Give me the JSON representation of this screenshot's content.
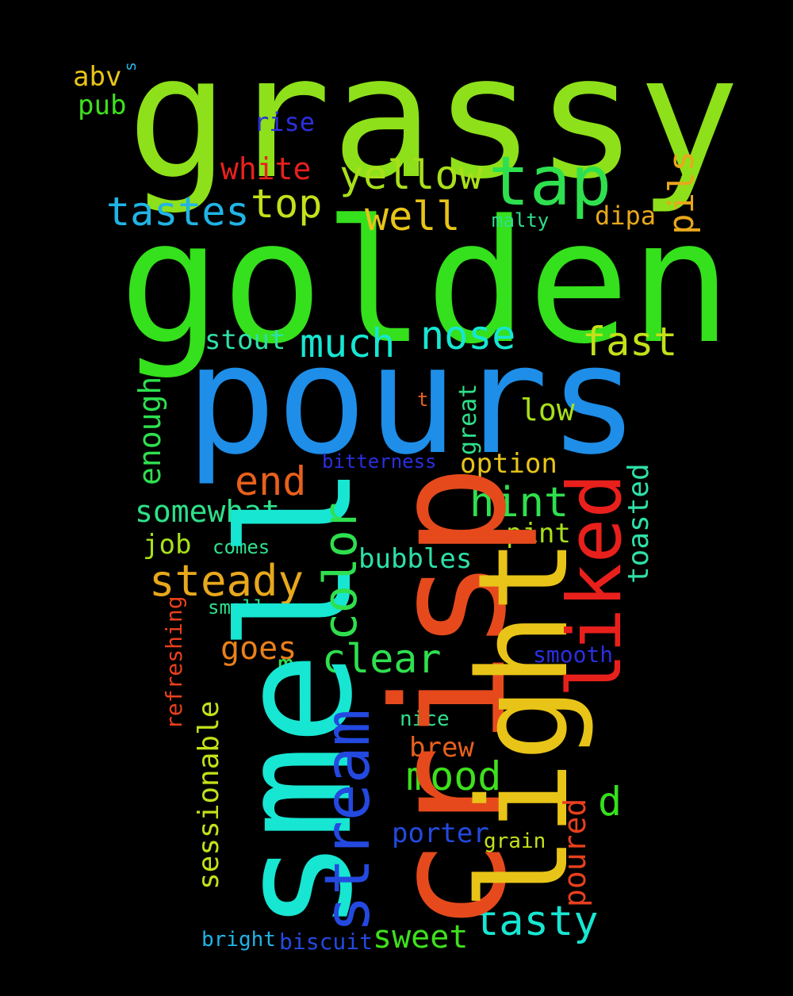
{
  "words": [
    {
      "text": "grassy",
      "color": "#8ee01a"
    },
    {
      "text": "golden",
      "color": "#35e01c"
    },
    {
      "text": "pours",
      "color": "#1e8ee8"
    },
    {
      "text": "smell",
      "color": "#17e6d2"
    },
    {
      "text": "crisp",
      "color": "#e64a1c"
    },
    {
      "text": "light",
      "color": "#e8c418"
    },
    {
      "text": "liked",
      "color": "#e8201c"
    },
    {
      "text": "stream",
      "color": "#2449e0"
    },
    {
      "text": "color",
      "color": "#2ee04e"
    },
    {
      "text": "tap",
      "color": "#2ee04e"
    },
    {
      "text": "yellow",
      "color": "#a8e01a"
    },
    {
      "text": "tastes",
      "color": "#20b4e6"
    },
    {
      "text": "top",
      "color": "#c4e01a"
    },
    {
      "text": "well",
      "color": "#e8c418"
    },
    {
      "text": "white",
      "color": "#e8201c"
    },
    {
      "text": "rise",
      "color": "#2b2fe0"
    },
    {
      "text": "pils",
      "color": "#e8a81c"
    },
    {
      "text": "dipa",
      "color": "#e8a81c"
    },
    {
      "text": "malty",
      "color": "#2ee08a"
    },
    {
      "text": "abv",
      "color": "#e8c418"
    },
    {
      "text": "s",
      "color": "#20b4e6"
    },
    {
      "text": "pub",
      "color": "#3ee01c"
    },
    {
      "text": "much",
      "color": "#17e6d2"
    },
    {
      "text": "nose",
      "color": "#17e6d2"
    },
    {
      "text": "fast",
      "color": "#c4e01a"
    },
    {
      "text": "stout",
      "color": "#2ee0a8"
    },
    {
      "text": "enough",
      "color": "#2ee04e"
    },
    {
      "text": "end",
      "color": "#e8601c"
    },
    {
      "text": "t",
      "color": "#e8601c"
    },
    {
      "text": "great",
      "color": "#2ee08a"
    },
    {
      "text": "low",
      "color": "#a8e01a"
    },
    {
      "text": "bitterness",
      "color": "#2b2fe0"
    },
    {
      "text": "option",
      "color": "#e8c418"
    },
    {
      "text": "hint",
      "color": "#2ee04e"
    },
    {
      "text": "somewhat",
      "color": "#2ee08a"
    },
    {
      "text": "pint",
      "color": "#a8e01a"
    },
    {
      "text": "job",
      "color": "#a8e01a"
    },
    {
      "text": "comes",
      "color": "#2ee08a"
    },
    {
      "text": "bubbles",
      "color": "#2ee0a8"
    },
    {
      "text": "steady",
      "color": "#e8a81c"
    },
    {
      "text": "toasted",
      "color": "#2ee0a8"
    },
    {
      "text": "small",
      "color": "#2ee08a"
    },
    {
      "text": "refreshing",
      "color": "#e8401c"
    },
    {
      "text": "goes",
      "color": "#e8801c"
    },
    {
      "text": "clear",
      "color": "#2ee04e"
    },
    {
      "text": "m",
      "color": "#2ee04e"
    },
    {
      "text": "smooth",
      "color": "#2b2fe0"
    },
    {
      "text": "sessionable",
      "color": "#c4e01a"
    },
    {
      "text": "nice",
      "color": "#2ee08a"
    },
    {
      "text": "brew",
      "color": "#e8601c"
    },
    {
      "text": "mood",
      "color": "#3ee01c"
    },
    {
      "text": "d",
      "color": "#35e01c"
    },
    {
      "text": "poured",
      "color": "#e8401c"
    },
    {
      "text": "porter",
      "color": "#2449e0"
    },
    {
      "text": "grain",
      "color": "#c4e01a"
    },
    {
      "text": "tasty",
      "color": "#17e6d2"
    },
    {
      "text": "sweet",
      "color": "#3ee01c"
    },
    {
      "text": "bright",
      "color": "#20b4e6"
    },
    {
      "text": "biscuit",
      "color": "#2449e0"
    }
  ]
}
